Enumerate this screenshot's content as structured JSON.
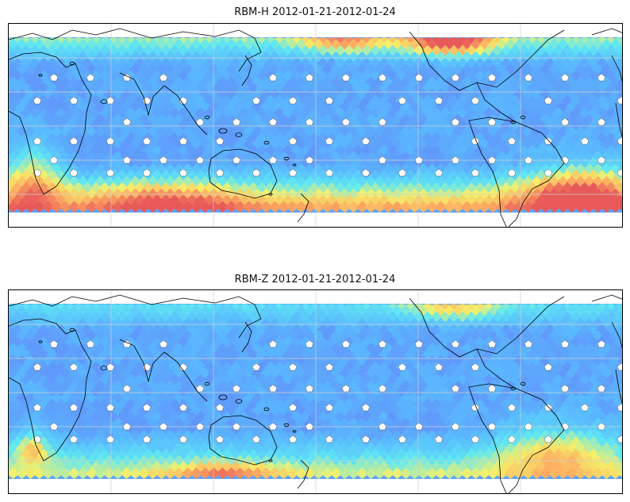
{
  "panels": [
    {
      "id": "top",
      "title": "RBM-H 2012-01-21-2012-01-24",
      "variant": "H"
    },
    {
      "id": "bottom",
      "title": "RBM-Z 2012-01-21-2012-01-24",
      "variant": "Z"
    }
  ],
  "colors": {
    "low": "#6a6af5",
    "mid": "#5ab8ff",
    "cyan": "#5fe8f2",
    "yellow": "#f5f06a",
    "orange": "#fdb062",
    "high": "#e85a5a",
    "coast": "#000000",
    "grid": "#cfcfcf"
  }
}
